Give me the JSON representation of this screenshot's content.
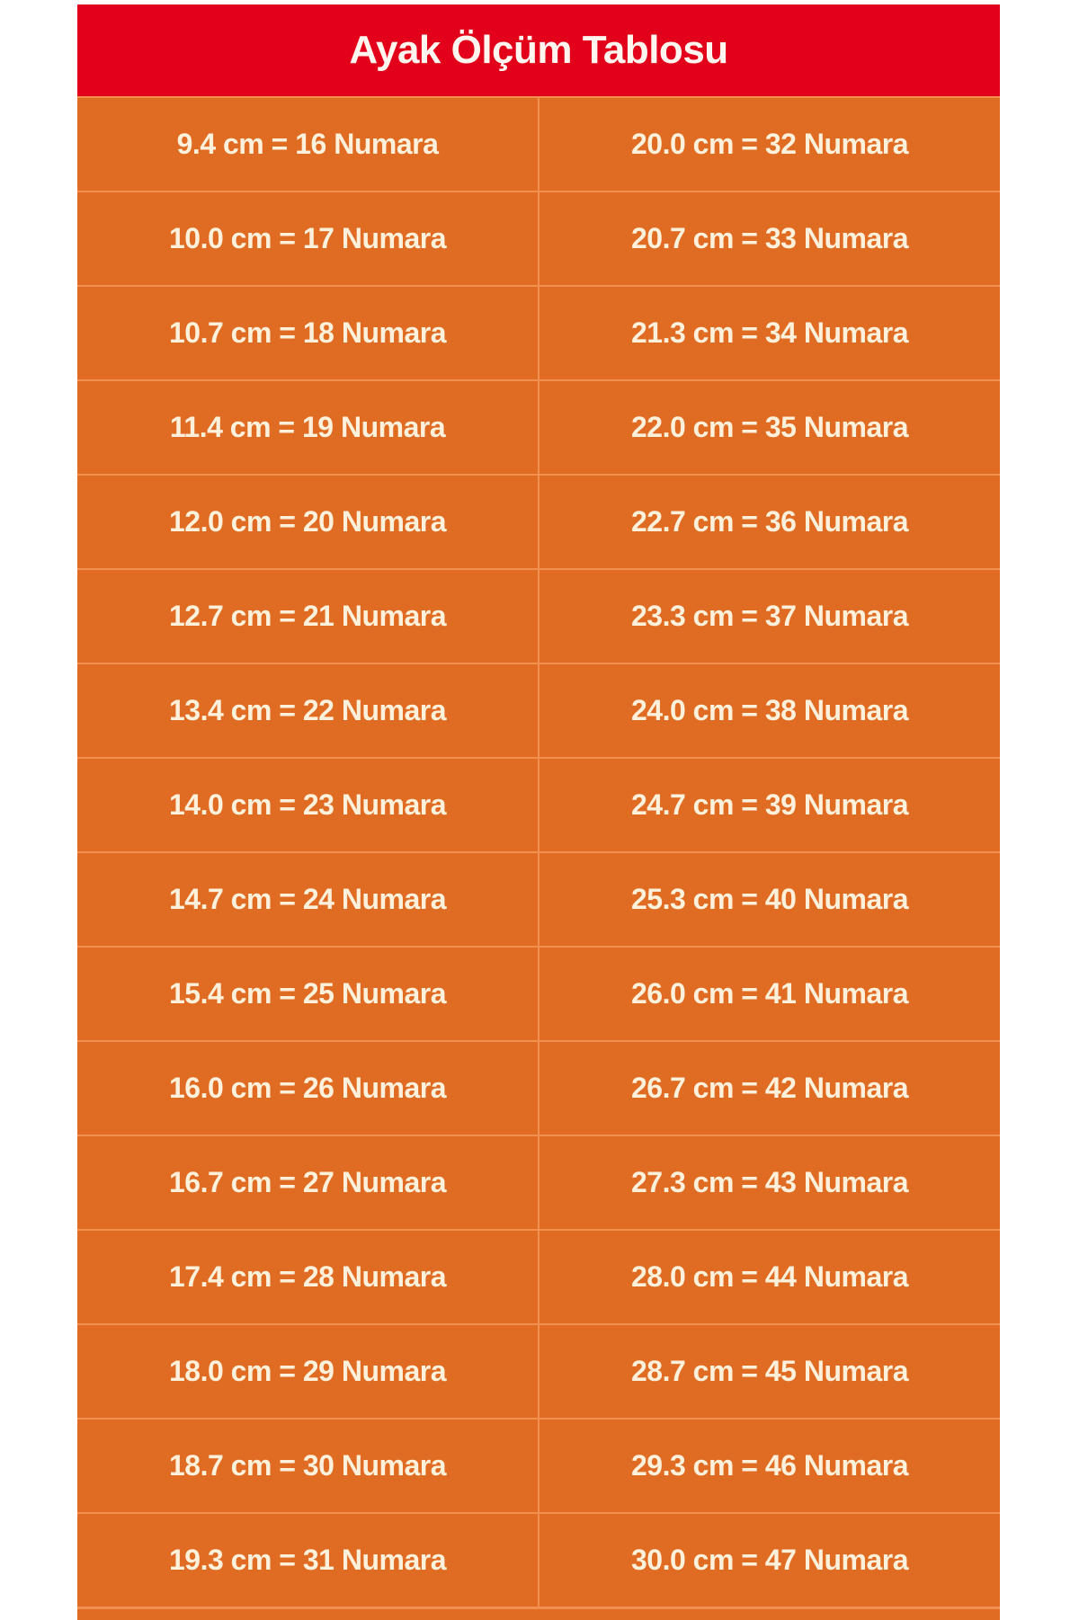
{
  "title": "Ayak Ölçüm Tablosu",
  "colors": {
    "header": "#e2001a",
    "body": "#e06b22",
    "divider": "#f2914f",
    "text": "#fdf1dc"
  },
  "rows": [
    [
      "9.4 cm = 16 Numara",
      "20.0 cm = 32 Numara"
    ],
    [
      "10.0 cm = 17 Numara",
      "20.7 cm = 33 Numara"
    ],
    [
      "10.7 cm = 18 Numara",
      "21.3 cm = 34 Numara"
    ],
    [
      "11.4 cm = 19 Numara",
      "22.0 cm = 35 Numara"
    ],
    [
      "12.0 cm = 20 Numara",
      "22.7 cm = 36 Numara"
    ],
    [
      "12.7 cm = 21 Numara",
      "23.3 cm = 37 Numara"
    ],
    [
      "13.4 cm = 22 Numara",
      "24.0 cm = 38 Numara"
    ],
    [
      "14.0 cm = 23 Numara",
      "24.7 cm = 39 Numara"
    ],
    [
      "14.7 cm = 24 Numara",
      "25.3 cm = 40 Numara"
    ],
    [
      "15.4 cm = 25 Numara",
      "26.0 cm = 41 Numara"
    ],
    [
      "16.0 cm = 26 Numara",
      "26.7 cm = 42 Numara"
    ],
    [
      "16.7 cm = 27 Numara",
      "27.3 cm = 43 Numara"
    ],
    [
      "17.4 cm = 28 Numara",
      "28.0 cm = 44 Numara"
    ],
    [
      "18.0 cm = 29 Numara",
      "28.7 cm = 45 Numara"
    ],
    [
      "18.7 cm = 30 Numara",
      "29.3 cm = 46 Numara"
    ],
    [
      "19.3 cm = 31 Numara",
      "30.0 cm = 47 Numara"
    ]
  ]
}
